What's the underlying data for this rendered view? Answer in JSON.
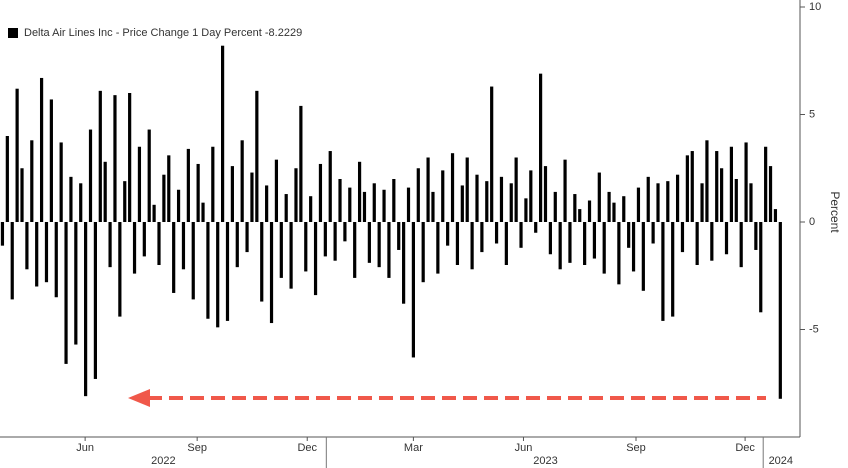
{
  "chart_data": {
    "type": "bar",
    "legend_label": "Delta Air Lines Inc - Price Change 1 Day Percent -8.2229",
    "y_label": "Percent",
    "color": "#000000",
    "values": [
      -1.1,
      4.0,
      -3.6,
      6.2,
      2.5,
      -2.2,
      3.8,
      -3.0,
      6.7,
      -2.8,
      5.7,
      -3.5,
      3.7,
      -6.6,
      2.1,
      -5.7,
      1.8,
      -8.1,
      4.3,
      -7.3,
      6.1,
      2.8,
      -2.1,
      5.9,
      -4.4,
      1.9,
      6.0,
      -2.4,
      3.5,
      -1.6,
      4.3,
      0.8,
      -2.0,
      2.2,
      3.1,
      -3.3,
      1.5,
      -2.2,
      3.4,
      -3.6,
      2.7,
      0.9,
      -4.5,
      3.5,
      -4.9,
      8.2,
      -4.6,
      2.6,
      -2.1,
      3.8,
      -1.4,
      2.3,
      6.1,
      -3.7,
      1.7,
      -4.7,
      2.9,
      -2.6,
      1.3,
      -3.1,
      2.5,
      5.4,
      -2.3,
      1.2,
      -3.4,
      2.7,
      -1.6,
      3.3,
      -1.8,
      2.0,
      -0.9,
      1.6,
      -2.6,
      2.8,
      1.4,
      -1.9,
      1.8,
      -2.1,
      1.5,
      -2.6,
      2.0,
      -1.3,
      -3.8,
      1.6,
      -6.3,
      2.5,
      -2.8,
      3.0,
      1.4,
      -2.4,
      2.4,
      -1.1,
      3.2,
      -2.0,
      1.7,
      3.0,
      -2.2,
      2.2,
      -1.4,
      1.9,
      6.3,
      -1.0,
      2.1,
      -2.0,
      1.8,
      3.0,
      -1.2,
      1.1,
      2.4,
      -0.5,
      6.9,
      2.6,
      -1.5,
      1.4,
      -2.2,
      2.9,
      -1.9,
      1.3,
      0.6,
      -2.0,
      1.0,
      -1.7,
      2.3,
      -2.4,
      1.4,
      0.9,
      -2.9,
      1.2,
      -1.2,
      -2.3,
      1.6,
      -3.2,
      2.1,
      -1.0,
      1.8,
      -4.6,
      1.9,
      -4.4,
      2.2,
      -1.4,
      3.1,
      3.3,
      -2.0,
      1.8,
      3.8,
      -1.8,
      3.3,
      2.5,
      -1.5,
      3.5,
      2.0,
      -2.1,
      3.7,
      1.8,
      -1.3,
      -4.2,
      3.5,
      2.6,
      0.6,
      -8.2229
    ],
    "xlim": [
      0,
      162.5
    ],
    "xticks": [
      {
        "value": 17.4,
        "label": "Jun"
      },
      {
        "value": 40.3,
        "label": "Sep"
      },
      {
        "value": 62.8,
        "label": "Dec"
      },
      {
        "value": 84.5,
        "label": "Mar"
      },
      {
        "value": 107,
        "label": "Jun"
      },
      {
        "value": 130,
        "label": "Sep"
      },
      {
        "value": 152.3,
        "label": "Dec"
      }
    ],
    "year_ticks": [
      {
        "value": 33.4,
        "label": "2022"
      },
      {
        "value": 111.5,
        "label": "2023"
      },
      {
        "value": 159.6,
        "label": "2024"
      }
    ],
    "year_separators": [
      66.7,
      156
    ],
    "ylim": [
      -10,
      10
    ],
    "yticks": [
      10,
      5,
      0,
      -5
    ]
  }
}
